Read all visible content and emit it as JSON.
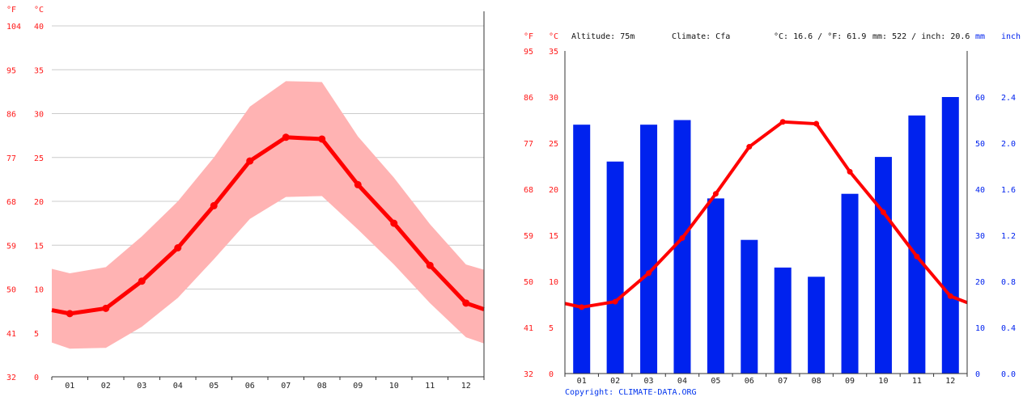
{
  "colors": {
    "temperature": "#ff0000",
    "temperature_band": "#ffb3b3",
    "precipitation": "#0022ee",
    "celsius_ticks": "#ff1a1a",
    "precip_ticks": "#0022ee",
    "grid": "#cccccc"
  },
  "left_panel": {
    "unit_f": "°F",
    "unit_c": "°C"
  },
  "right_panel": {
    "unit_f": "°F",
    "unit_c": "°C",
    "unit_mm": "mm",
    "unit_inch": "inch",
    "altitude": "Altitude: 75m",
    "climate": "Climate: Cfa",
    "avg_temp": "°C: 16.6 / °F: 61.9",
    "precip_total": "mm: 522 / inch: 20.6",
    "copyright": "Copyright: CLIMATE-DATA.ORG"
  },
  "chart_data": [
    {
      "type": "line",
      "x": [
        "01",
        "02",
        "03",
        "04",
        "05",
        "06",
        "07",
        "08",
        "09",
        "10",
        "11",
        "12"
      ],
      "ylim_c": [
        0,
        40
      ],
      "yticks_c": [
        "0",
        "5",
        "10",
        "15",
        "20",
        "25",
        "30",
        "35",
        "40"
      ],
      "yticks_f": [
        "32",
        "41",
        "50",
        "59",
        "68",
        "77",
        "86",
        "95",
        "104"
      ],
      "series": [
        {
          "role": "mean",
          "values": [
            7.2,
            7.8,
            10.9,
            14.7,
            19.5,
            24.6,
            27.3,
            27.1,
            21.9,
            17.5,
            12.7,
            8.4
          ]
        },
        {
          "role": "max",
          "values": [
            11.8,
            12.5,
            16.0,
            20.0,
            25.0,
            30.8,
            33.7,
            33.6,
            27.4,
            22.7,
            17.4,
            12.8
          ]
        },
        {
          "role": "min",
          "values": [
            3.2,
            3.3,
            5.7,
            9.0,
            13.4,
            18.0,
            20.5,
            20.6,
            16.8,
            12.8,
            8.4,
            4.5
          ]
        }
      ],
      "edge_values": {
        "mean": [
          7.6,
          7.7
        ],
        "max": [
          12.3,
          12.2
        ],
        "min": [
          3.9,
          3.8
        ]
      },
      "grid": true
    },
    {
      "type": "bar",
      "categories": [
        "01",
        "02",
        "03",
        "04",
        "05",
        "06",
        "07",
        "08",
        "09",
        "10",
        "11",
        "12"
      ],
      "ylim_c": [
        0,
        35
      ],
      "yticks_c": [
        "0",
        "5",
        "10",
        "15",
        "20",
        "25",
        "30",
        "35"
      ],
      "yticks_f": [
        "32",
        "41",
        "50",
        "59",
        "68",
        "77",
        "86",
        "95"
      ],
      "ylim_mm": [
        0,
        70
      ],
      "yticks_mm": [
        "0",
        "10",
        "20",
        "30",
        "40",
        "50",
        "60"
      ],
      "yticks_inch": [
        "0.0",
        "0.4",
        "0.8",
        "1.2",
        "1.6",
        "2.0",
        "2.4"
      ],
      "series": [
        {
          "role": "precipitation_mm",
          "values": [
            54,
            46,
            54,
            55,
            38,
            29,
            23,
            21,
            39,
            47,
            56,
            60
          ]
        },
        {
          "role": "temperature_c",
          "values": [
            7.2,
            7.8,
            10.9,
            14.7,
            19.5,
            24.6,
            27.3,
            27.1,
            21.9,
            17.5,
            12.7,
            8.4
          ]
        }
      ],
      "edge_values": {
        "temperature_c": [
          7.6,
          7.7
        ]
      },
      "grid": false
    }
  ]
}
